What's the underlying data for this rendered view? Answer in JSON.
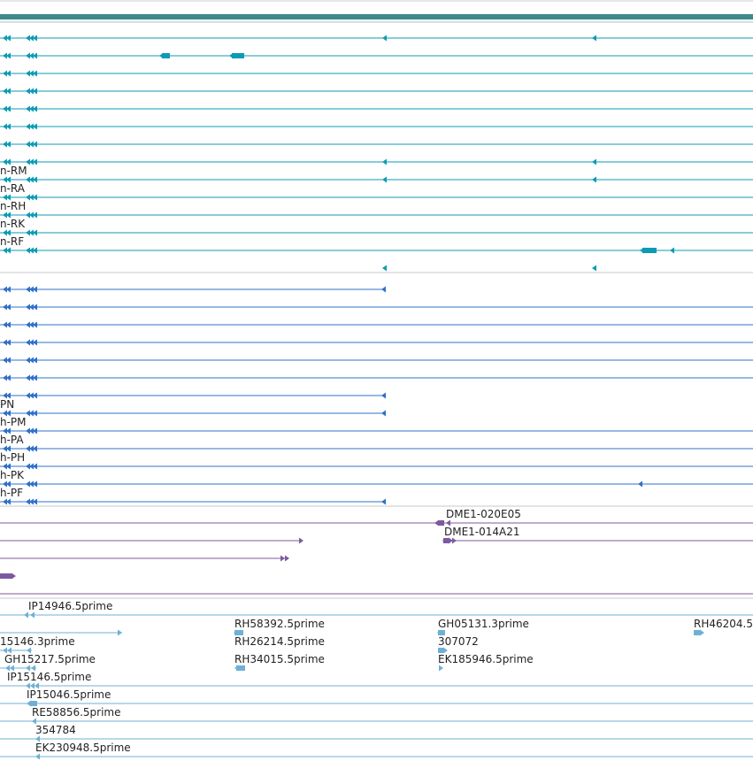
{
  "colors": {
    "teal": "#0c9bb3",
    "blue": "#2f70c7",
    "purple": "#7c5a9e",
    "lightblue": "#6fb0d6",
    "ruler": "#3d8a8a",
    "divider": "#c8c8c8"
  },
  "tracks": {
    "transcripts_rna": {
      "rows": [
        {
          "label": ""
        },
        {
          "label": ""
        },
        {
          "label": ""
        },
        {
          "label": ""
        },
        {
          "label": ""
        },
        {
          "label": ""
        },
        {
          "label": ""
        },
        {
          "label": ""
        },
        {
          "label": "n-RM"
        },
        {
          "label": "n-RA"
        },
        {
          "label": "n-RH"
        },
        {
          "label": "n-RK"
        },
        {
          "label": "n-RF"
        }
      ]
    },
    "transcripts_protein": {
      "rows": [
        {
          "label": ""
        },
        {
          "label": ""
        },
        {
          "label": ""
        },
        {
          "label": ""
        },
        {
          "label": ""
        },
        {
          "label": ""
        },
        {
          "label": ""
        },
        {
          "label": "PN"
        },
        {
          "label": "h-PM"
        },
        {
          "label": "h-PA"
        },
        {
          "label": "h-PH"
        },
        {
          "label": "h-PK"
        },
        {
          "label": "h-PF"
        }
      ]
    },
    "clones": {
      "labels": [
        "DME1-020E05",
        "DME1-014A21"
      ]
    },
    "ests": {
      "labels": [
        "IP14946.5prime",
        "RH58392.5prime",
        "GH05131.3prime",
        "RH46204.5",
        "15146.3prime",
        "RH26214.5prime",
        "307072",
        "GH15217.5prime",
        "RH34015.5prime",
        "EK185946.5prime",
        "IP15146.5prime",
        "IP15046.5prime",
        "RE58856.5prime",
        "354784",
        "EK230948.5prime"
      ]
    }
  }
}
